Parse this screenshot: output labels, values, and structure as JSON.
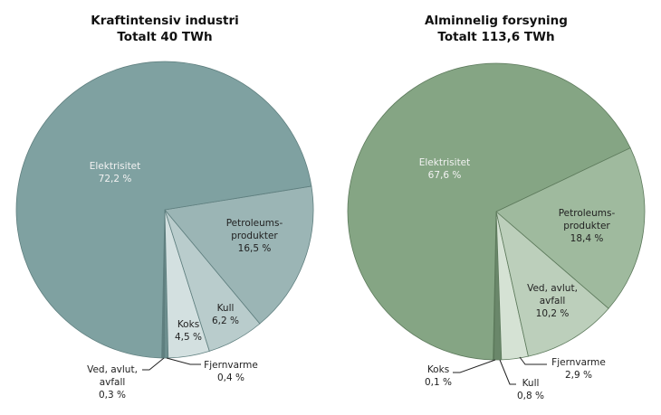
{
  "charts": [
    {
      "title": "Kraftintensiv industri",
      "subtitle": "Totalt 40 TWh",
      "labels": {
        "elektrisitet": {
          "name": "Elektrisitet",
          "value": "72,2 %"
        },
        "petroleum": {
          "name1": "Petroleums-",
          "name2": "produkter",
          "value": "16,5 %"
        },
        "kull": {
          "name": "Kull",
          "value": "6,2 %"
        },
        "koks": {
          "name": "Koks",
          "value": "4,5 %"
        },
        "fjernvarme": {
          "name": "Fjernvarme",
          "value": "0,4 %"
        },
        "ved": {
          "name1": "Ved, avlut,",
          "name2": "avfall",
          "value": "0,3 %"
        }
      }
    },
    {
      "title": "Alminnelig forsyning",
      "subtitle": "Totalt 113,6 TWh",
      "labels": {
        "elektrisitet": {
          "name": "Elektrisitet",
          "value": "67,6 %"
        },
        "petroleum": {
          "name1": "Petroleums-",
          "name2": "produkter",
          "value": "18,4 %"
        },
        "ved": {
          "name1": "Ved, avlut,",
          "name2": "avfall",
          "value": "10,2 %"
        },
        "fjernvarme": {
          "name": "Fjernvarme",
          "value": "2,9 %"
        },
        "kull": {
          "name": "Kull",
          "value": "0,8 %"
        },
        "koks": {
          "name": "Koks",
          "value": "0,1 %"
        }
      }
    }
  ],
  "chart_data": [
    {
      "type": "pie",
      "title": "Kraftintensiv industri",
      "subtitle": "Totalt 40 TWh",
      "total_twh": 40,
      "categories": [
        "Elektrisitet",
        "Petroleumsprodukter",
        "Kull",
        "Koks",
        "Fjernvarme",
        "Ved, avlut, avfall"
      ],
      "values": [
        72.2,
        16.5,
        6.2,
        4.5,
        0.4,
        0.3
      ],
      "unit": "%",
      "colors": [
        "#7fa1a1",
        "#9bb5b5",
        "#b9cccc",
        "#d3e0e0",
        "#6e8f8f",
        "#5f7f7f"
      ]
    },
    {
      "type": "pie",
      "title": "Alminnelig forsyning",
      "subtitle": "Totalt 113,6 TWh",
      "total_twh": 113.6,
      "categories": [
        "Elektrisitet",
        "Petroleumsprodukter",
        "Ved, avlut, avfall",
        "Fjernvarme",
        "Kull",
        "Koks"
      ],
      "values": [
        67.6,
        18.4,
        10.2,
        2.9,
        0.8,
        0.1
      ],
      "unit": "%",
      "colors": [
        "#85a584",
        "#9fba9e",
        "#bccfbb",
        "#d5e2d4",
        "#6a876a",
        "#5a775a"
      ]
    }
  ]
}
